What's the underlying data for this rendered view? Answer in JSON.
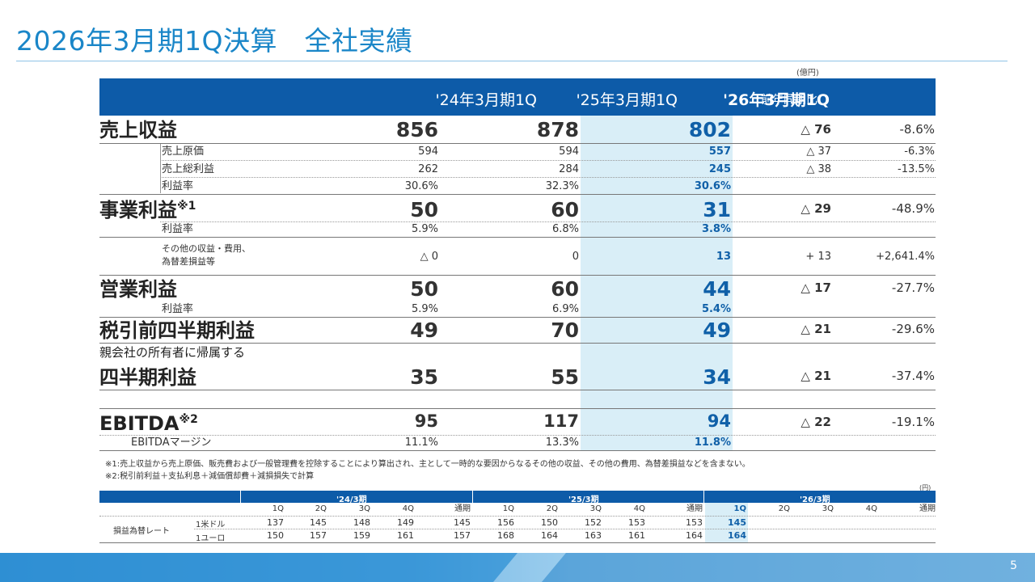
{
  "slide": {
    "title": "2026年3月期1Q決算　全社実績",
    "unit": "(億円)",
    "page_number": "5"
  },
  "table": {
    "headers": [
      "'24年3月期1Q",
      "'25年3月期1Q",
      "'26年3月期1Q",
      "前年同期比"
    ],
    "rows": {
      "revenue": {
        "label": "売上収益",
        "v1": "856",
        "v2": "878",
        "v3": "802",
        "delta": "△ 76",
        "pct": "-8.6%"
      },
      "cogs": {
        "label": "売上原価",
        "v1": "594",
        "v2": "594",
        "v3": "557",
        "delta": "△ 37",
        "pct": "-6.3%"
      },
      "gross": {
        "label": "売上総利益",
        "v1": "262",
        "v2": "284",
        "v3": "245",
        "delta": "△ 38",
        "pct": "-13.5%"
      },
      "gross_margin": {
        "label": "利益率",
        "v1": "30.6%",
        "v2": "32.3%",
        "v3": "30.6%"
      },
      "business": {
        "label": "事業利益",
        "sup": "※1",
        "v1": "50",
        "v2": "60",
        "v3": "31",
        "delta": "△ 29",
        "pct": "-48.9%"
      },
      "business_margin": {
        "label": "利益率",
        "v1": "5.9%",
        "v2": "6.8%",
        "v3": "3.8%"
      },
      "other": {
        "label1": "その他の収益・費用、",
        "label2": "為替差損益等",
        "v1": "△ 0",
        "v2": "0",
        "v3": "13",
        "delta": "+ 13",
        "pct": "+2,641.4%"
      },
      "operating": {
        "label": "営業利益",
        "v1": "50",
        "v2": "60",
        "v3": "44",
        "delta": "△ 17",
        "pct": "-27.7%"
      },
      "operating_margin": {
        "label": "利益率",
        "v1": "5.9%",
        "v2": "6.9%",
        "v3": "5.4%"
      },
      "pretax": {
        "label": "税引前四半期利益",
        "v1": "49",
        "v2": "70",
        "v3": "49",
        "delta": "△ 21",
        "pct": "-29.6%"
      },
      "net": {
        "label1": "親会社の所有者に帰属する",
        "label2": "四半期利益",
        "v1": "35",
        "v2": "55",
        "v3": "34",
        "delta": "△ 21",
        "pct": "-37.4%"
      },
      "ebitda": {
        "label": "EBITDA",
        "sup": "※2",
        "v1": "95",
        "v2": "117",
        "v3": "94",
        "delta": "△ 22",
        "pct": "-19.1%"
      },
      "ebitda_margin": {
        "label": "EBITDAマージン",
        "v1": "11.1%",
        "v2": "13.3%",
        "v3": "11.8%"
      }
    }
  },
  "notes": [
    "※1:売上収益から売上原価、販売費および一般管理費を控除することにより算出され、主として一時的な要因からなるその他の収益、その他の費用、為替差損益などを含まない。",
    "※2:税引前利益＋支払利息＋減価償却費＋減損損失で計算"
  ],
  "fx": {
    "unit": "(円)",
    "years": [
      "'24/3期",
      "'25/3期",
      "'26/3期"
    ],
    "periods": [
      "1Q",
      "2Q",
      "3Q",
      "4Q",
      "通期",
      "1Q",
      "2Q",
      "3Q",
      "4Q",
      "通期",
      "1Q",
      "2Q",
      "3Q",
      "4Q",
      "通期"
    ],
    "row_group_label": "損益為替レート",
    "rows": [
      {
        "label": "1米ドル",
        "values": [
          "137",
          "145",
          "148",
          "149",
          "145",
          "156",
          "150",
          "152",
          "153",
          "153",
          "145",
          "",
          "",
          "",
          ""
        ]
      },
      {
        "label": "1ユーロ",
        "values": [
          "150",
          "157",
          "159",
          "161",
          "157",
          "168",
          "164",
          "163",
          "161",
          "164",
          "164",
          "",
          "",
          "",
          ""
        ]
      }
    ]
  },
  "colors": {
    "accent": "#0d5ba8",
    "title": "#1a86c8",
    "highlight_bg": "#d9eef7",
    "highlight_text": "#1060a8"
  }
}
